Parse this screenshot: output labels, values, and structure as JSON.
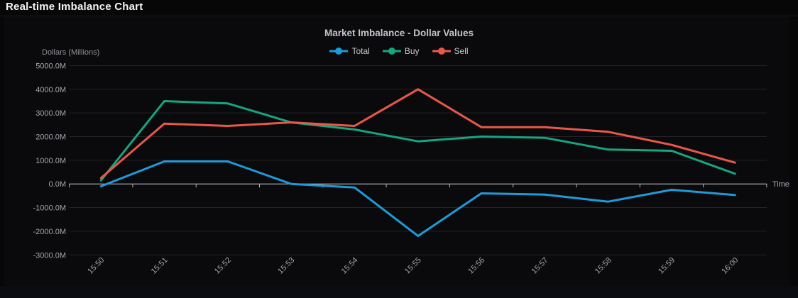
{
  "page": {
    "title": "Real-time Imbalance Chart"
  },
  "chart_data": {
    "type": "line",
    "title": "Market Imbalance - Dollar Values",
    "xlabel": "Time",
    "ylabel": "Dollars (Millions)",
    "x": [
      "15:50",
      "15:51",
      "15:52",
      "15:53",
      "15:54",
      "15:55",
      "15:56",
      "15:57",
      "15:58",
      "15:59",
      "16:00"
    ],
    "series": [
      {
        "name": "Total",
        "color": "#1f9ad8",
        "values": [
          -100,
          950,
          950,
          0,
          -150,
          -2200,
          -400,
          -450,
          -750,
          -250,
          -470
        ]
      },
      {
        "name": "Buy",
        "color": "#16a57f",
        "values": [
          150,
          3500,
          3400,
          2600,
          2300,
          1800,
          2000,
          1950,
          1450,
          1400,
          430
        ]
      },
      {
        "name": "Sell",
        "color": "#e8584a",
        "values": [
          250,
          2550,
          2450,
          2600,
          2450,
          4000,
          2400,
          2400,
          2200,
          1650,
          900
        ]
      }
    ],
    "ylim": [
      -3000,
      5000
    ],
    "y_tick_step": 1000,
    "y_tick_suffix": "M",
    "grid": true,
    "legend_position": "top",
    "colors": {
      "background": "#0a0a0c",
      "gridline": "#232329",
      "axis_line": "#cfcfd6",
      "tick": "#b0b0b8",
      "tick_label": "#a5a5ad",
      "axis_name": "#8f8f97"
    }
  }
}
